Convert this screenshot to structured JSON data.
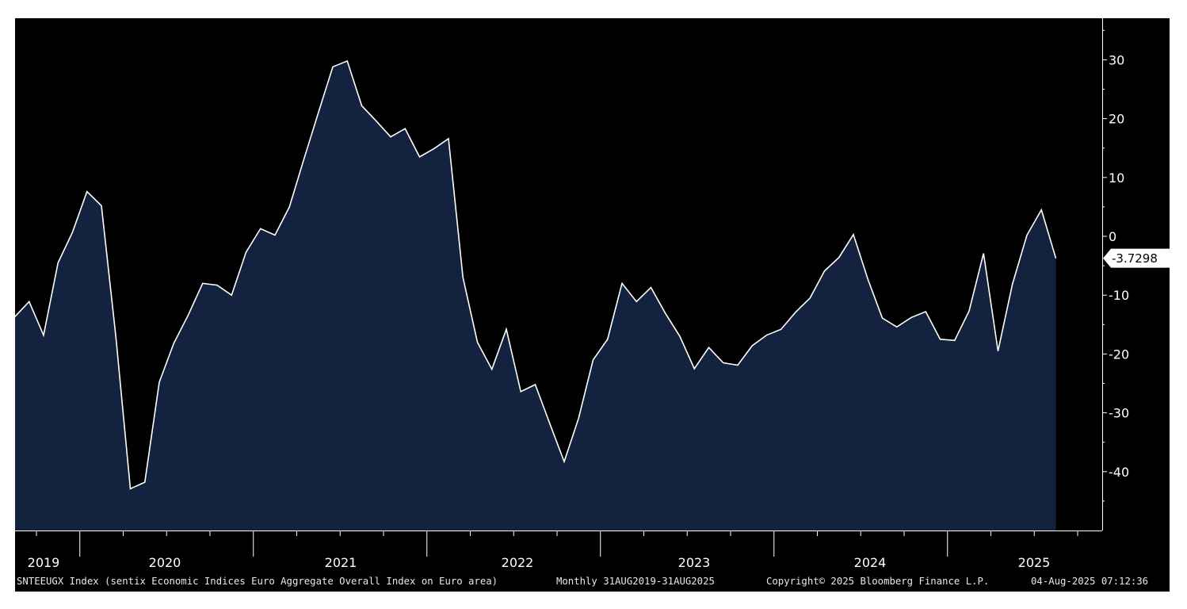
{
  "colors": {
    "background": "#000000",
    "area_fill": "#13223f",
    "line": "#ffffff",
    "axis": "#ffffff"
  },
  "chart_data": {
    "type": "area",
    "title": "",
    "xlabel": "",
    "ylabel": "",
    "ylim": [
      -49,
      37
    ],
    "xlim": [
      "2019-08-31",
      "2025-09-30"
    ],
    "grid": false,
    "legend": "none",
    "yticks": [
      "30",
      "20",
      "10",
      "0",
      "-10",
      "-20",
      "-30",
      "-40"
    ],
    "xtick_labels": [
      "2019",
      "2020",
      "2021",
      "2022",
      "2023",
      "2024",
      "2025"
    ],
    "last_value_label": "-3.7298",
    "series": [
      {
        "x": [
          "2019-08",
          "2019-09",
          "2019-10",
          "2019-11",
          "2019-12",
          "2020-01",
          "2020-02",
          "2020-03",
          "2020-04",
          "2020-05",
          "2020-06",
          "2020-07",
          "2020-08",
          "2020-09",
          "2020-10",
          "2020-11",
          "2020-12",
          "2021-01",
          "2021-02",
          "2021-03",
          "2021-04",
          "2021-05",
          "2021-06",
          "2021-07",
          "2021-08",
          "2021-09",
          "2021-10",
          "2021-11",
          "2021-12",
          "2022-01",
          "2022-02",
          "2022-03",
          "2022-04",
          "2022-05",
          "2022-06",
          "2022-07",
          "2022-08",
          "2022-09",
          "2022-10",
          "2022-11",
          "2022-12",
          "2023-01",
          "2023-02",
          "2023-03",
          "2023-04",
          "2023-05",
          "2023-06",
          "2023-07",
          "2023-08",
          "2023-09",
          "2023-10",
          "2023-11",
          "2023-12",
          "2024-01",
          "2024-02",
          "2024-03",
          "2024-04",
          "2024-05",
          "2024-06",
          "2024-07",
          "2024-08",
          "2024-09",
          "2024-10",
          "2024-11",
          "2024-12",
          "2025-01",
          "2025-02",
          "2025-03",
          "2025-04",
          "2025-05",
          "2025-06",
          "2025-07",
          "2025-08"
        ],
        "values": [
          -13.7,
          -11.1,
          -16.8,
          -4.5,
          0.7,
          7.6,
          5.2,
          -17.1,
          -42.9,
          -41.8,
          -24.8,
          -18.2,
          -13.4,
          -8.0,
          -8.3,
          -10.0,
          -2.7,
          1.3,
          0.2,
          5.0,
          13.1,
          21.0,
          28.8,
          29.8,
          22.2,
          19.6,
          16.9,
          18.3,
          13.5,
          14.9,
          16.6,
          -7.0,
          -18.0,
          -22.6,
          -15.8,
          -26.4,
          -25.2,
          -31.8,
          -38.3,
          -30.9,
          -21.0,
          -17.5,
          -8.0,
          -11.1,
          -8.7,
          -13.1,
          -17.0,
          -22.5,
          -18.9,
          -21.5,
          -21.9,
          -18.6,
          -16.8,
          -15.8,
          -12.9,
          -10.5,
          -5.9,
          -3.6,
          0.3,
          -7.3,
          -13.9,
          -15.4,
          -13.8,
          -12.8,
          -17.5,
          -17.7,
          -12.7,
          -2.9,
          -19.5,
          -8.1,
          0.2,
          4.5,
          -3.7298
        ]
      }
    ]
  },
  "footer": {
    "ticker_text": "SNTEEUGX Index (sentix Economic Indices Euro Aggregate  Overall Index on Euro area)",
    "range_text": "Monthly 31AUG2019-31AUG2025",
    "copyright_text": "Copyright© 2025 Bloomberg Finance L.P.",
    "timestamp_text": "04-Aug-2025 07:12:36"
  }
}
